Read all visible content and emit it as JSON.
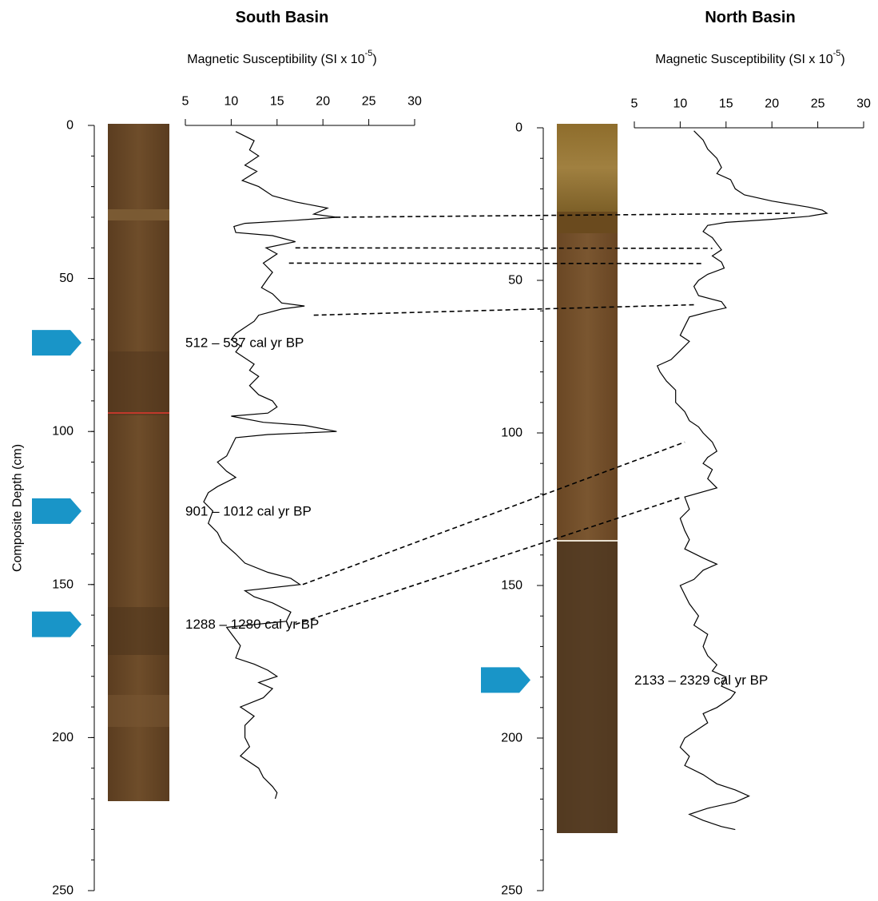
{
  "chart_data": [
    {
      "type": "line",
      "title": "South Basin",
      "x_label": "Magnetic Susceptibility (SI x 10",
      "x_label_sup": "-5",
      "x_label_end": ")",
      "y_label": "Composite Depth (cm)",
      "xlim": [
        5,
        30
      ],
      "xticks": [
        5,
        10,
        15,
        20,
        25,
        30
      ],
      "ylim": [
        0,
        250
      ],
      "yticks": [
        0,
        50,
        100,
        150,
        200,
        250
      ],
      "y_inverted": true,
      "depth": [
        2,
        5,
        8,
        10,
        13,
        15,
        18,
        20,
        23,
        25,
        27,
        29,
        30,
        31,
        32,
        33,
        35,
        36,
        38,
        40,
        42,
        45,
        48,
        50,
        53,
        55,
        58,
        59,
        60,
        62,
        64,
        66,
        68,
        70,
        72,
        74,
        76,
        78,
        80,
        82,
        85,
        88,
        90,
        92,
        94,
        95,
        97,
        98,
        100,
        101,
        102,
        105,
        108,
        110,
        113,
        115,
        118,
        120,
        123,
        126,
        130,
        133,
        136,
        140,
        143,
        146,
        148,
        150,
        152,
        154,
        156,
        159,
        162,
        164,
        166,
        170,
        174,
        176,
        178,
        180,
        182,
        184,
        187,
        190,
        193,
        196,
        200,
        203,
        206,
        210,
        213,
        216,
        218,
        220
      ],
      "series": [
        {
          "color": "#000000",
          "values": [
            10.5,
            12.5,
            12.0,
            13.0,
            11.5,
            12.8,
            11.2,
            13.0,
            14.5,
            17.0,
            20.5,
            19.0,
            21.5,
            17.0,
            11.5,
            10.3,
            10.5,
            14.5,
            17.0,
            13.8,
            15.0,
            13.5,
            14.5,
            14.0,
            13.3,
            14.5,
            15.5,
            18.0,
            15.5,
            13.0,
            12.5,
            11.5,
            10.5,
            10.0,
            11.0,
            10.5,
            11.5,
            12.5,
            12.0,
            13.0,
            12.0,
            13.0,
            14.5,
            15.0,
            14.0,
            10.0,
            13.5,
            18.0,
            21.5,
            14.0,
            10.5,
            10.0,
            9.5,
            8.5,
            9.5,
            10.5,
            8.5,
            7.5,
            7.0,
            8.0,
            7.5,
            8.5,
            9.0,
            10.5,
            11.5,
            14.0,
            16.5,
            17.5,
            11.5,
            12.5,
            14.5,
            16.5,
            16.0,
            9.5,
            10.0,
            11.0,
            10.5,
            12.5,
            14.0,
            15.0,
            13.0,
            14.5,
            13.5,
            11.0,
            12.5,
            11.5,
            11.5,
            12.0,
            11.0,
            13.0,
            13.5,
            14.5,
            15.0,
            14.8
          ]
        }
      ],
      "annotation_color": "#1f78c1",
      "marker_color": "#1995c8",
      "annotations": [
        {
          "text": "512 – 537 cal yr BP",
          "depth": 71
        },
        {
          "text": "901 – 1012 cal yr BP",
          "depth": 126
        },
        {
          "text": "1288 – 1280 cal yr BP",
          "depth": 163
        }
      ]
    },
    {
      "type": "line",
      "title": "North Basin",
      "x_label": "Magnetic Susceptibility (SI x 10",
      "x_label_sup": "-5",
      "x_label_end": ")",
      "xlim": [
        5,
        30
      ],
      "xticks": [
        5,
        10,
        15,
        20,
        25,
        30
      ],
      "ylim": [
        0,
        250
      ],
      "yticks": [
        0,
        50,
        100,
        150,
        200,
        250
      ],
      "y_inverted": true,
      "depth": [
        1,
        4,
        7,
        10,
        13,
        15,
        17,
        20,
        22,
        24,
        26,
        27,
        28,
        29,
        30,
        31,
        32,
        34,
        36,
        38,
        40,
        42,
        44,
        46,
        48,
        50,
        52,
        55,
        57,
        59,
        60,
        62,
        65,
        68,
        70,
        73,
        76,
        78,
        80,
        83,
        86,
        90,
        93,
        96,
        98,
        100,
        103,
        106,
        108,
        110,
        112,
        115,
        118,
        121,
        125,
        128,
        132,
        135,
        138,
        141,
        143,
        145,
        148,
        150,
        153,
        156,
        160,
        163,
        166,
        170,
        173,
        176,
        178,
        180,
        183,
        185,
        187,
        190,
        192,
        195,
        198,
        200,
        203,
        206,
        209,
        212,
        215,
        217,
        219,
        221,
        223,
        225,
        227,
        229,
        230
      ],
      "series": [
        {
          "color": "#000000",
          "values": [
            11.5,
            12.5,
            13.0,
            14.0,
            14.5,
            14.0,
            15.5,
            16.0,
            17.0,
            20.0,
            24.0,
            25.5,
            26.0,
            24.0,
            20.0,
            15.0,
            13.0,
            12.5,
            13.5,
            14.0,
            14.5,
            13.5,
            14.5,
            14.8,
            13.0,
            12.0,
            11.5,
            12.0,
            14.5,
            15.0,
            13.5,
            11.0,
            10.5,
            10.0,
            11.0,
            10.0,
            9.0,
            7.5,
            7.8,
            8.5,
            9.5,
            9.5,
            10.5,
            11.0,
            12.0,
            12.5,
            13.5,
            14.0,
            13.0,
            12.5,
            13.5,
            13.0,
            14.0,
            10.5,
            11.0,
            10.0,
            10.5,
            11.0,
            10.5,
            12.5,
            14.0,
            12.5,
            11.5,
            10.0,
            10.5,
            11.0,
            12.0,
            11.5,
            13.0,
            12.5,
            13.0,
            14.0,
            13.5,
            15.0,
            14.5,
            16.0,
            15.5,
            14.0,
            12.5,
            13.0,
            11.5,
            10.5,
            10.0,
            11.0,
            10.5,
            12.5,
            14.0,
            16.0,
            17.5,
            16.0,
            13.0,
            11.0,
            12.5,
            14.5,
            16.0
          ]
        }
      ],
      "annotation_color": "#1f78c1",
      "marker_color": "#1995c8",
      "annotations": [
        {
          "text": "2133 – 2329  cal yr BP",
          "depth": 181
        }
      ]
    }
  ],
  "tie_lines": [
    {
      "from": [
        30,
        21.4
      ],
      "to": [
        28,
        22.5
      ]
    },
    {
      "from": [
        40,
        17.0
      ],
      "to": [
        39.5,
        13.5
      ]
    },
    {
      "from": [
        45,
        16.3
      ],
      "to": [
        44.5,
        12.5
      ]
    },
    {
      "from": [
        62,
        19.0
      ],
      "to": [
        58,
        11.5
      ]
    },
    {
      "from": [
        150,
        17.8
      ],
      "to": [
        103,
        10.5
      ]
    },
    {
      "from": [
        163,
        17.0
      ],
      "to": [
        121,
        10.2
      ]
    }
  ]
}
